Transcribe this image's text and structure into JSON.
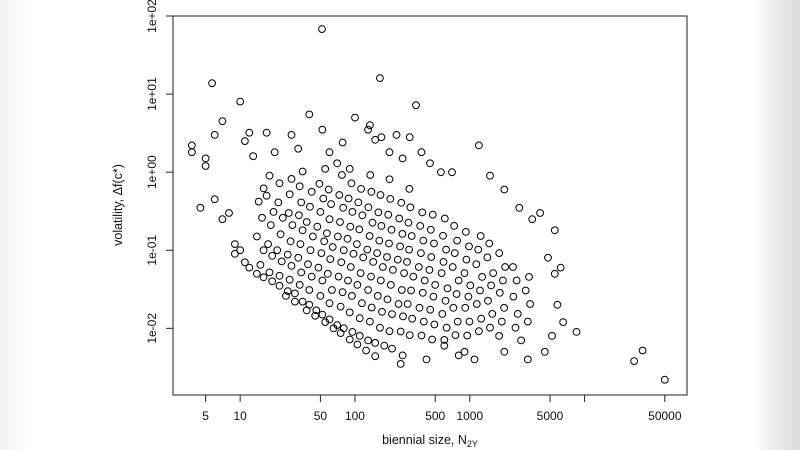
{
  "chart_data": {
    "type": "scatter",
    "title": "",
    "xlabel": "biennial size,  N",
    "xlabel_sub": "2Y",
    "ylabel": "volatility,  Δf(c*)",
    "x_scale": "log",
    "y_scale": "log",
    "xlim": [
      2.6,
      78000
    ],
    "ylim": [
      0.0014,
      100
    ],
    "grid": false,
    "legend": "none",
    "marker": "open-circle",
    "marker_color": "#000000",
    "x_ticks": [
      {
        "value": 5,
        "label": "5"
      },
      {
        "value": 10,
        "label": "10"
      },
      {
        "value": 50,
        "label": "50"
      },
      {
        "value": 100,
        "label": "100"
      },
      {
        "value": 500,
        "label": "500"
      },
      {
        "value": 1000,
        "label": "1000"
      },
      {
        "value": 5000,
        "label": "5000"
      },
      {
        "value": 10000,
        "label": ""
      },
      {
        "value": 50000,
        "label": "50000"
      }
    ],
    "y_ticks": [
      {
        "value": 100,
        "label": "1e+02"
      },
      {
        "value": 10,
        "label": "1e+01"
      },
      {
        "value": 1,
        "label": "1e+00"
      },
      {
        "value": 0.1,
        "label": "1e-01"
      },
      {
        "value": 0.01,
        "label": "1e-02"
      }
    ],
    "points": [
      [
        51.6,
        68
      ],
      [
        5.7,
        13.8
      ],
      [
        165,
        16
      ],
      [
        340,
        7.2
      ],
      [
        10,
        8
      ],
      [
        3.8,
        2.2
      ],
      [
        3.8,
        1.8
      ],
      [
        5,
        1.5
      ],
      [
        5,
        1.2
      ],
      [
        6,
        3
      ],
      [
        7,
        4.5
      ],
      [
        11,
        2.5
      ],
      [
        12,
        3.2
      ],
      [
        13,
        1.6
      ],
      [
        17,
        3.2
      ],
      [
        20,
        1.8
      ],
      [
        28,
        3
      ],
      [
        32,
        2
      ],
      [
        40,
        5.5
      ],
      [
        52,
        3.5
      ],
      [
        60,
        1.8
      ],
      [
        70,
        1.3
      ],
      [
        78,
        2.4
      ],
      [
        90,
        1.1
      ],
      [
        100,
        5
      ],
      [
        130,
        3.5
      ],
      [
        135,
        4
      ],
      [
        150,
        2.6
      ],
      [
        170,
        2.8
      ],
      [
        200,
        1.8
      ],
      [
        230,
        3
      ],
      [
        260,
        1.5
      ],
      [
        300,
        2.8
      ],
      [
        380,
        1.8
      ],
      [
        450,
        1.3
      ],
      [
        560,
        1
      ],
      [
        700,
        1
      ],
      [
        1200,
        2.2
      ],
      [
        1500,
        0.9
      ],
      [
        2000,
        0.6
      ],
      [
        2700,
        0.35
      ],
      [
        3500,
        0.25
      ],
      [
        4100,
        0.3
      ],
      [
        5500,
        0.18
      ],
      [
        4800,
        0.08
      ],
      [
        5500,
        0.05
      ],
      [
        6200,
        0.06
      ],
      [
        5800,
        0.02
      ],
      [
        6500,
        0.012
      ],
      [
        5200,
        0.008
      ],
      [
        4500,
        0.005
      ],
      [
        2800,
        0.007
      ],
      [
        3200,
        0.004
      ],
      [
        2000,
        0.005
      ],
      [
        1800,
        0.008
      ],
      [
        1100,
        0.004
      ],
      [
        800,
        0.0045
      ],
      [
        900,
        0.005
      ],
      [
        600,
        0.006
      ],
      [
        420,
        0.004
      ],
      [
        250,
        0.0035
      ],
      [
        260,
        0.0045
      ],
      [
        8500,
        0.009
      ],
      [
        27000,
        0.0038
      ],
      [
        32000,
        0.0052
      ],
      [
        50000,
        0.0022
      ],
      [
        4.5,
        0.35
      ],
      [
        6,
        0.45
      ],
      [
        7,
        0.25
      ],
      [
        8,
        0.3
      ],
      [
        9,
        0.12
      ],
      [
        10,
        0.1
      ],
      [
        9,
        0.09
      ],
      [
        11,
        0.07
      ],
      [
        12,
        0.06
      ],
      [
        14,
        0.05
      ],
      [
        16,
        0.045
      ],
      [
        19,
        0.04
      ],
      [
        22,
        0.035
      ],
      [
        26,
        0.03
      ],
      [
        30,
        0.028
      ],
      [
        35,
        0.022
      ],
      [
        40,
        0.02
      ],
      [
        46,
        0.017
      ],
      [
        52,
        0.015
      ],
      [
        60,
        0.013
      ],
      [
        70,
        0.011
      ],
      [
        80,
        0.01
      ],
      [
        95,
        0.009
      ],
      [
        110,
        0.008
      ],
      [
        130,
        0.007
      ],
      [
        150,
        0.0065
      ],
      [
        180,
        0.006
      ],
      [
        210,
        0.0055
      ],
      [
        25,
        0.026
      ],
      [
        30,
        0.022
      ],
      [
        38,
        0.017
      ],
      [
        45,
        0.0145
      ],
      [
        55,
        0.012
      ],
      [
        65,
        0.01
      ],
      [
        75,
        0.0087
      ],
      [
        90,
        0.0072
      ],
      [
        105,
        0.0062
      ],
      [
        125,
        0.0052
      ],
      [
        150,
        0.0044
      ],
      [
        15,
        0.065
      ],
      [
        16,
        0.1
      ],
      [
        14,
        0.15
      ],
      [
        15.5,
        0.26
      ],
      [
        14.5,
        0.42
      ],
      [
        16,
        0.62
      ],
      [
        18,
        0.052
      ],
      [
        19,
        0.085
      ],
      [
        17.5,
        0.12
      ],
      [
        18.5,
        0.21
      ],
      [
        19.5,
        0.31
      ],
      [
        17,
        0.5
      ],
      [
        18,
        0.9
      ],
      [
        22,
        0.047
      ],
      [
        23,
        0.072
      ],
      [
        21,
        0.1
      ],
      [
        22.5,
        0.16
      ],
      [
        23.5,
        0.26
      ],
      [
        21.5,
        0.41
      ],
      [
        22,
        0.72
      ],
      [
        27,
        0.042
      ],
      [
        28,
        0.063
      ],
      [
        26,
        0.088
      ],
      [
        27.5,
        0.13
      ],
      [
        28.5,
        0.21
      ],
      [
        26.5,
        0.3
      ],
      [
        27,
        0.52
      ],
      [
        28,
        0.82
      ],
      [
        33,
        0.036
      ],
      [
        34,
        0.052
      ],
      [
        32,
        0.08
      ],
      [
        33.5,
        0.12
      ],
      [
        35,
        0.18
      ],
      [
        32.5,
        0.28
      ],
      [
        34,
        0.41
      ],
      [
        33,
        0.66
      ],
      [
        35,
        1.02
      ],
      [
        40,
        0.031
      ],
      [
        42,
        0.046
      ],
      [
        39,
        0.066
      ],
      [
        41,
        0.1
      ],
      [
        43,
        0.15
      ],
      [
        38,
        0.23
      ],
      [
        40.5,
        0.36
      ],
      [
        42,
        0.56
      ],
      [
        50,
        0.026
      ],
      [
        52,
        0.041
      ],
      [
        48,
        0.06
      ],
      [
        51,
        0.092
      ],
      [
        54,
        0.13
      ],
      [
        47,
        0.2
      ],
      [
        50,
        0.31
      ],
      [
        53,
        0.46
      ],
      [
        49,
        0.71
      ],
      [
        55,
        1.1
      ],
      [
        60,
        0.021
      ],
      [
        63,
        0.031
      ],
      [
        58,
        0.05
      ],
      [
        61,
        0.077
      ],
      [
        64,
        0.11
      ],
      [
        57,
        0.165
      ],
      [
        60,
        0.25
      ],
      [
        62,
        0.39
      ],
      [
        59,
        0.6
      ],
      [
        75,
        0.019
      ],
      [
        78,
        0.029
      ],
      [
        72,
        0.046
      ],
      [
        76,
        0.07
      ],
      [
        80,
        0.1
      ],
      [
        71,
        0.15
      ],
      [
        74,
        0.23
      ],
      [
        79,
        0.35
      ],
      [
        73,
        0.51
      ],
      [
        77,
        0.92
      ],
      [
        90,
        0.016
      ],
      [
        94,
        0.026
      ],
      [
        87,
        0.041
      ],
      [
        92,
        0.061
      ],
      [
        97,
        0.09
      ],
      [
        86,
        0.14
      ],
      [
        91,
        0.2
      ],
      [
        95,
        0.31
      ],
      [
        88,
        0.46
      ],
      [
        93,
        0.72
      ],
      [
        110,
        0.0135
      ],
      [
        115,
        0.021
      ],
      [
        105,
        0.036
      ],
      [
        112,
        0.051
      ],
      [
        118,
        0.081
      ],
      [
        104,
        0.12
      ],
      [
        109,
        0.185
      ],
      [
        116,
        0.28
      ],
      [
        107,
        0.41
      ],
      [
        113,
        0.61
      ],
      [
        135,
        0.0122
      ],
      [
        140,
        0.0185
      ],
      [
        130,
        0.031
      ],
      [
        138,
        0.046
      ],
      [
        144,
        0.071
      ],
      [
        128,
        0.102
      ],
      [
        134,
        0.152
      ],
      [
        142,
        0.225
      ],
      [
        131,
        0.355
      ],
      [
        139,
        0.56
      ],
      [
        136,
        0.92
      ],
      [
        165,
        0.0102
      ],
      [
        172,
        0.0163
      ],
      [
        158,
        0.026
      ],
      [
        168,
        0.041
      ],
      [
        175,
        0.061
      ],
      [
        156,
        0.092
      ],
      [
        163,
        0.133
      ],
      [
        170,
        0.205
      ],
      [
        160,
        0.305
      ],
      [
        167,
        0.51
      ],
      [
        200,
        0.0092
      ],
      [
        210,
        0.0152
      ],
      [
        192,
        0.0235
      ],
      [
        205,
        0.036
      ],
      [
        214,
        0.056
      ],
      [
        190,
        0.082
      ],
      [
        198,
        0.122
      ],
      [
        208,
        0.183
      ],
      [
        195,
        0.285
      ],
      [
        203,
        0.455
      ],
      [
        200,
        0.81
      ],
      [
        250,
        0.0091
      ],
      [
        262,
        0.0142
      ],
      [
        240,
        0.0205
      ],
      [
        256,
        0.031
      ],
      [
        268,
        0.051
      ],
      [
        236,
        0.076
      ],
      [
        247,
        0.112
      ],
      [
        259,
        0.162
      ],
      [
        243,
        0.255
      ],
      [
        253,
        0.405
      ],
      [
        300,
        0.0082
      ],
      [
        315,
        0.0133
      ],
      [
        288,
        0.0205
      ],
      [
        308,
        0.0305
      ],
      [
        322,
        0.046
      ],
      [
        284,
        0.071
      ],
      [
        296,
        0.102
      ],
      [
        312,
        0.152
      ],
      [
        292,
        0.225
      ],
      [
        304,
        0.355
      ],
      [
        298,
        0.61
      ],
      [
        380,
        0.0081
      ],
      [
        398,
        0.0122
      ],
      [
        365,
        0.0183
      ],
      [
        390,
        0.0285
      ],
      [
        405,
        0.041
      ],
      [
        360,
        0.061
      ],
      [
        375,
        0.092
      ],
      [
        394,
        0.133
      ],
      [
        370,
        0.205
      ],
      [
        385,
        0.305
      ],
      [
        470,
        0.0072
      ],
      [
        492,
        0.0112
      ],
      [
        452,
        0.0173
      ],
      [
        482,
        0.0255
      ],
      [
        500,
        0.036
      ],
      [
        445,
        0.056
      ],
      [
        462,
        0.082
      ],
      [
        488,
        0.122
      ],
      [
        458,
        0.183
      ],
      [
        476,
        0.285
      ],
      [
        600,
        0.0071
      ],
      [
        628,
        0.0102
      ],
      [
        576,
        0.0153
      ],
      [
        615,
        0.0225
      ],
      [
        640,
        0.0325
      ],
      [
        568,
        0.051
      ],
      [
        590,
        0.071
      ],
      [
        622,
        0.102
      ],
      [
        584,
        0.153
      ],
      [
        606,
        0.255
      ],
      [
        750,
        0.0082
      ],
      [
        785,
        0.0122
      ],
      [
        720,
        0.0183
      ],
      [
        768,
        0.0275
      ],
      [
        800,
        0.041
      ],
      [
        710,
        0.061
      ],
      [
        740,
        0.092
      ],
      [
        775,
        0.133
      ],
      [
        730,
        0.205
      ],
      [
        950,
        0.0081
      ],
      [
        995,
        0.0122
      ],
      [
        912,
        0.0183
      ],
      [
        972,
        0.0255
      ],
      [
        1010,
        0.0355
      ],
      [
        900,
        0.051
      ],
      [
        935,
        0.076
      ],
      [
        985,
        0.112
      ],
      [
        925,
        0.172
      ],
      [
        1200,
        0.0092
      ],
      [
        1258,
        0.0133
      ],
      [
        1152,
        0.0205
      ],
      [
        1228,
        0.0305
      ],
      [
        1280,
        0.0455
      ],
      [
        1140,
        0.066
      ],
      [
        1185,
        0.102
      ],
      [
        1245,
        0.152
      ],
      [
        1500,
        0.0102
      ],
      [
        1572,
        0.0153
      ],
      [
        1440,
        0.0225
      ],
      [
        1535,
        0.0355
      ],
      [
        1600,
        0.051
      ],
      [
        1425,
        0.081
      ],
      [
        1480,
        0.122
      ],
      [
        1900,
        0.0122
      ],
      [
        1990,
        0.0183
      ],
      [
        1825,
        0.0285
      ],
      [
        1945,
        0.041
      ],
      [
        2030,
        0.061
      ],
      [
        1805,
        0.092
      ],
      [
        2500,
        0.0102
      ],
      [
        2620,
        0.0153
      ],
      [
        2400,
        0.0255
      ],
      [
        2560,
        0.041
      ],
      [
        2380,
        0.061
      ],
      [
        3200,
        0.0122
      ],
      [
        3350,
        0.0205
      ],
      [
        3070,
        0.0305
      ],
      [
        3280,
        0.0455
      ]
    ]
  }
}
